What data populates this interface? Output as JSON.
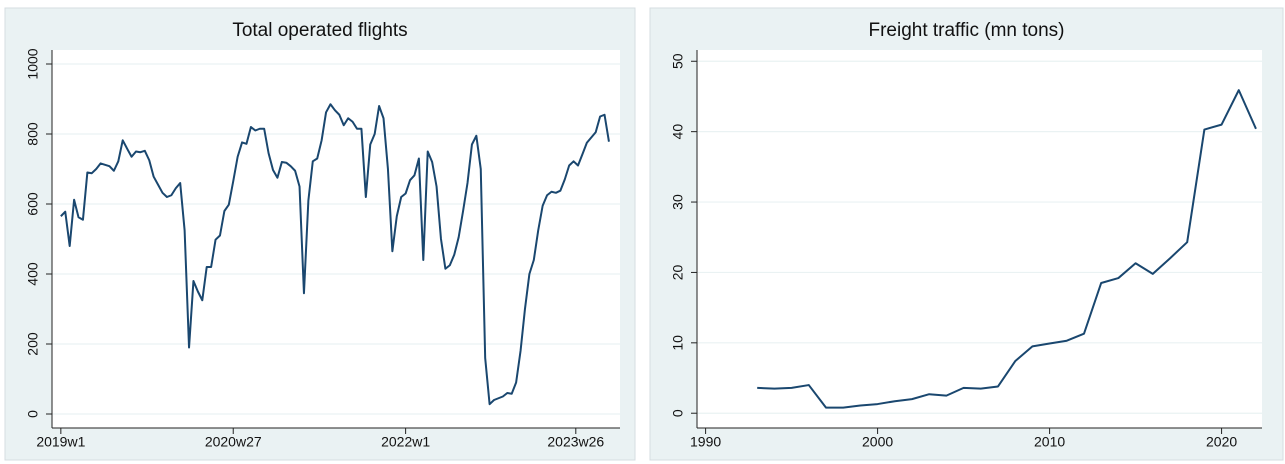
{
  "chart_data": [
    {
      "type": "line",
      "title": "Total operated flights",
      "color": "#1a476f",
      "grid": true,
      "x": [
        "2019w1",
        "2019w3",
        "2019w5",
        "2019w7",
        "2019w9",
        "2019w11",
        "2019w13",
        "2019w15",
        "2019w17",
        "2019w19",
        "2019w21",
        "2019w23",
        "2019w25",
        "2019w27",
        "2019w29",
        "2019w31",
        "2019w33",
        "2019w35",
        "2019w37",
        "2019w39",
        "2019w41",
        "2019w43",
        "2019w45",
        "2019w47",
        "2019w49",
        "2019w51",
        "2020w1",
        "2020w3",
        "2020w5",
        "2020w7",
        "2020w9",
        "2020w11",
        "2020w13",
        "2020w15",
        "2020w17",
        "2020w19",
        "2020w21",
        "2020w23",
        "2020w25",
        "2020w27",
        "2020w29",
        "2020w31",
        "2020w33",
        "2020w35",
        "2020w37",
        "2020w39",
        "2020w41",
        "2020w43",
        "2020w45",
        "2020w47",
        "2020w49",
        "2020w51",
        "2021w1",
        "2021w3",
        "2021w5",
        "2021w7",
        "2021w9",
        "2021w11",
        "2021w13",
        "2021w15",
        "2021w17",
        "2021w19",
        "2021w21",
        "2021w23",
        "2021w25",
        "2021w27",
        "2021w29",
        "2021w31",
        "2021w33",
        "2021w35",
        "2021w37",
        "2021w39",
        "2021w41",
        "2021w43",
        "2021w45",
        "2021w47",
        "2021w49",
        "2021w51",
        "2022w1",
        "2022w3",
        "2022w5",
        "2022w7",
        "2022w9",
        "2022w11",
        "2022w13",
        "2022w15",
        "2022w17",
        "2022w19",
        "2022w21",
        "2022w23",
        "2022w25",
        "2022w27",
        "2022w29",
        "2022w31",
        "2022w33",
        "2022w35",
        "2022w37",
        "2022w39",
        "2022w41",
        "2022w43",
        "2022w45",
        "2022w47",
        "2022w49",
        "2022w51",
        "2023w1",
        "2023w3",
        "2023w5",
        "2023w7",
        "2023w9",
        "2023w11",
        "2023w13",
        "2023w15",
        "2023w17",
        "2023w19",
        "2023w21",
        "2023w23",
        "2023w25",
        "2023w27",
        "2023w29",
        "2023w31",
        "2023w33",
        "2023w35",
        "2023w37",
        "2023w39",
        "2023w41"
      ],
      "values": [
        565,
        578,
        480,
        612,
        562,
        555,
        690,
        688,
        700,
        716,
        712,
        708,
        695,
        722,
        782,
        758,
        735,
        750,
        748,
        752,
        725,
        678,
        655,
        632,
        620,
        625,
        645,
        660,
        525,
        190,
        380,
        350,
        325,
        420,
        420,
        498,
        510,
        580,
        598,
        665,
        735,
        776,
        772,
        820,
        810,
        815,
        815,
        745,
        697,
        675,
        720,
        718,
        708,
        695,
        650,
        345,
        610,
        722,
        730,
        782,
        862,
        885,
        868,
        855,
        825,
        845,
        835,
        815,
        815,
        620,
        770,
        800,
        880,
        845,
        700,
        465,
        565,
        620,
        630,
        668,
        682,
        730,
        440,
        750,
        720,
        650,
        500,
        415,
        425,
        455,
        505,
        580,
        660,
        770,
        795,
        700,
        160,
        28,
        40,
        45,
        50,
        60,
        58,
        90,
        180,
        300,
        400,
        440,
        525,
        595,
        625,
        635,
        632,
        638,
        670,
        710,
        722,
        710,
        742,
        775,
        790,
        805,
        850,
        855,
        778
      ],
      "xlim": [
        "2018w49",
        "2023w46"
      ],
      "xticks": [
        "2019w1",
        "2020w27",
        "2022w1",
        "2023w26"
      ],
      "ylim": [
        -40,
        1040
      ],
      "yticks": [
        0,
        200,
        400,
        600,
        800,
        1000
      ]
    },
    {
      "type": "line",
      "title": "Freight traffic (mn tons)",
      "color": "#1a476f",
      "grid": true,
      "x": [
        1993,
        1994,
        1995,
        1996,
        1997,
        1998,
        1999,
        2000,
        2001,
        2002,
        2003,
        2004,
        2005,
        2006,
        2007,
        2008,
        2009,
        2010,
        2011,
        2012,
        2013,
        2014,
        2015,
        2016,
        2017,
        2018,
        2019,
        2020,
        2021,
        2022
      ],
      "values": [
        3.6,
        3.5,
        3.6,
        4.0,
        0.8,
        0.8,
        1.1,
        1.3,
        1.7,
        2.0,
        2.7,
        2.5,
        3.6,
        3.5,
        3.8,
        7.4,
        9.5,
        9.9,
        10.3,
        11.3,
        18.5,
        19.2,
        21.3,
        19.8,
        22.0,
        24.3,
        40.3,
        41.0,
        45.9,
        40.4
      ],
      "xlim": [
        1989.5,
        2022.35
      ],
      "xticks": [
        1990,
        2000,
        2010,
        2020
      ],
      "ylim": [
        -2.1,
        51.6
      ],
      "yticks": [
        0,
        10,
        20,
        30,
        40,
        50
      ]
    }
  ]
}
